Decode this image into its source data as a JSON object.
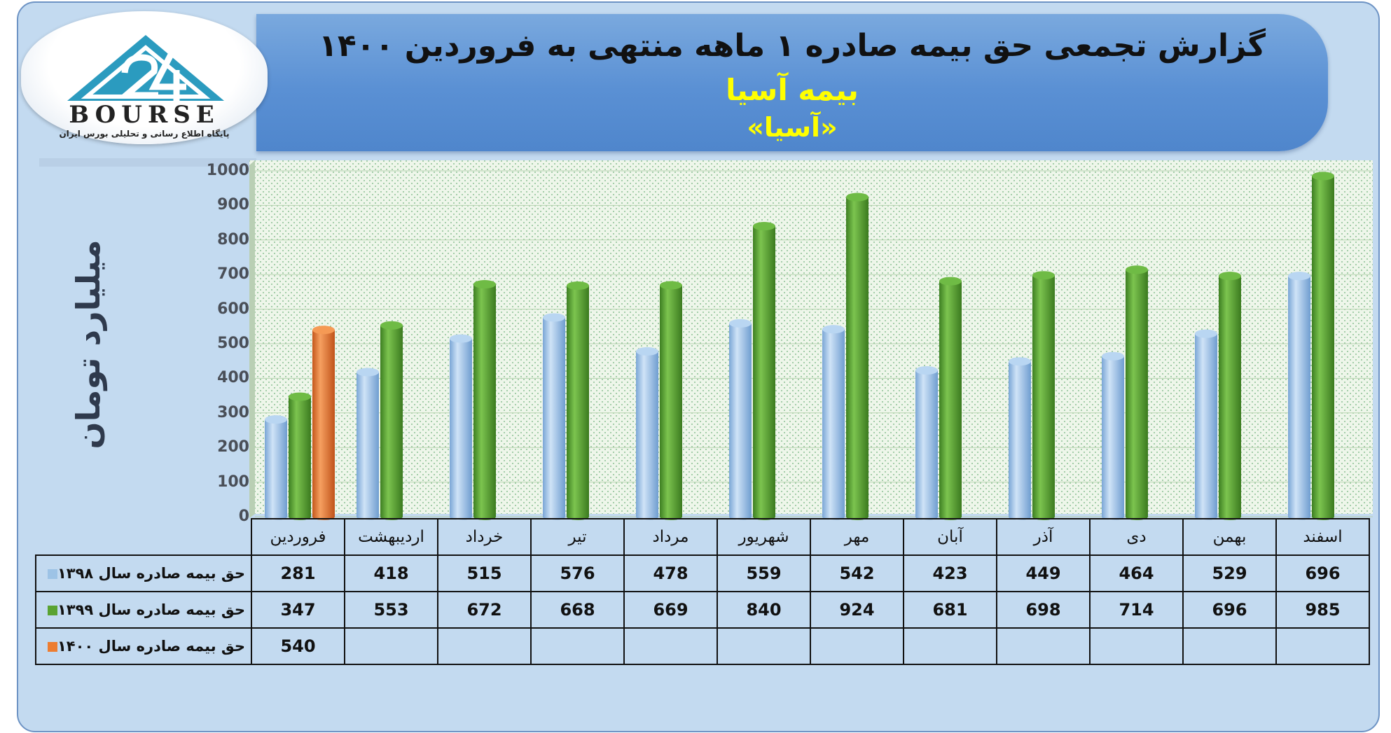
{
  "header": {
    "title": "گزارش تجمعی حق بیمه صادره ۱ ماهه منتهی به فروردین ۱۴۰۰",
    "company": "بیمه آسیا",
    "symbol": "«آسیا»"
  },
  "logo": {
    "word": "BOURSE",
    "subtitle": "پایگاه اطلاع رسانی و تحلیلی بورس ایران"
  },
  "chart_data": {
    "type": "bar",
    "ylabel": "میلیارد تومان",
    "ylim": [
      0,
      1000
    ],
    "yticks": [
      "1000",
      "900",
      "800",
      "700",
      "600",
      "500",
      "400",
      "300",
      "200",
      "100",
      "0"
    ],
    "categories": [
      "فروردین",
      "اردیبهشت",
      "خرداد",
      "تیر",
      "مرداد",
      "شهریور",
      "مهر",
      "آبان",
      "آذر",
      "دی",
      "بهمن",
      "اسفند"
    ],
    "series": [
      {
        "name": "حق بیمه صادره سال ۱۳۹۸",
        "color": "#9dc3e6",
        "values": [
          281,
          418,
          515,
          576,
          478,
          559,
          542,
          423,
          449,
          464,
          529,
          696
        ]
      },
      {
        "name": "حق بیمه صادره سال ۱۳۹۹",
        "color": "#5aa332",
        "values": [
          347,
          553,
          672,
          668,
          669,
          840,
          924,
          681,
          698,
          714,
          696,
          985
        ]
      },
      {
        "name": "حق بیمه صادره سال ۱۴۰۰",
        "color": "#ed7d31",
        "values": [
          540,
          null,
          null,
          null,
          null,
          null,
          null,
          null,
          null,
          null,
          null,
          null
        ]
      }
    ],
    "legend": "table-left",
    "grid": true
  }
}
